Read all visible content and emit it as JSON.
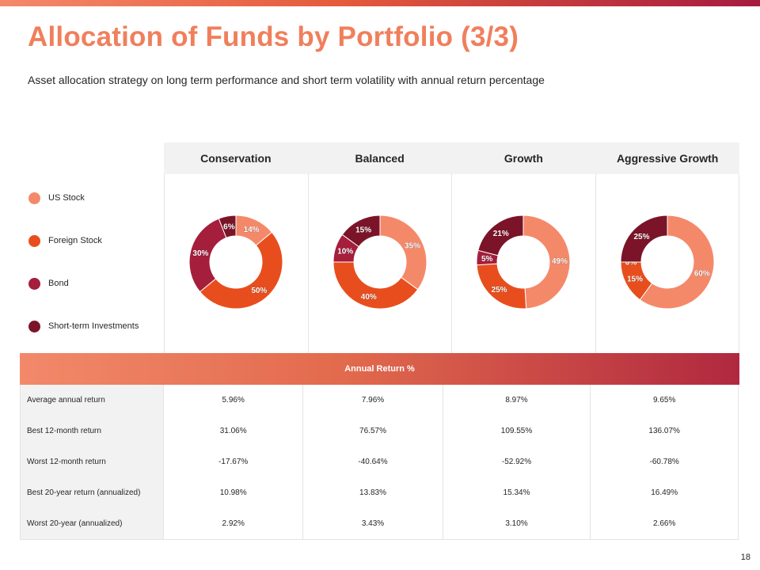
{
  "title": "Allocation of Funds by Portfolio (3/3)",
  "subtitle": "Asset allocation strategy on long term performance and short term volatility  with annual return percentage",
  "page_number": "18",
  "colors": {
    "accent_orange": "#f07f5c",
    "us_stock": "#f4896a",
    "foreign_stock": "#e84e1d",
    "bond": "#a51e3c",
    "short_term": "#7b1428"
  },
  "legend": [
    {
      "label": "US Stock",
      "color": "#f4896a"
    },
    {
      "label": "Foreign Stock",
      "color": "#e84e1d"
    },
    {
      "label": "Bond",
      "color": "#a51e3c"
    },
    {
      "label": "Short-term Investments",
      "color": "#7b1428"
    }
  ],
  "portfolios": [
    "Conservation",
    "Balanced",
    "Growth",
    "Aggressive Growth"
  ],
  "chart_data": [
    {
      "type": "pie",
      "variant": "donut",
      "title": "Conservation",
      "categories": [
        "US Stock",
        "Foreign Stock",
        "Bond",
        "Short-term Investments"
      ],
      "values": [
        14,
        50,
        30,
        6
      ],
      "labels": [
        "14%",
        "50%",
        "30%",
        "6%"
      ]
    },
    {
      "type": "pie",
      "variant": "donut",
      "title": "Balanced",
      "categories": [
        "US Stock",
        "Foreign Stock",
        "Bond",
        "Short-term Investments"
      ],
      "values": [
        35,
        40,
        10,
        15
      ],
      "labels": [
        "35%",
        "40%",
        "10%",
        "15%"
      ]
    },
    {
      "type": "pie",
      "variant": "donut",
      "title": "Growth",
      "categories": [
        "US Stock",
        "Foreign Stock",
        "Bond",
        "Short-term Investments"
      ],
      "values": [
        49,
        25,
        5,
        21
      ],
      "labels": [
        "49%",
        "25%",
        "5%",
        "21%"
      ]
    },
    {
      "type": "pie",
      "variant": "donut",
      "title": "Aggressive Growth",
      "categories": [
        "US Stock",
        "Foreign Stock",
        "Bond",
        "Short-term Investments"
      ],
      "values": [
        60,
        15,
        0,
        25
      ],
      "labels": [
        "60%",
        "15%",
        "0%",
        "25%"
      ]
    }
  ],
  "annual_return": {
    "band_label": "Annual Return %",
    "rows": [
      {
        "metric": "Average annual return",
        "values": [
          "5.96%",
          "7.96%",
          "8.97%",
          "9.65%"
        ]
      },
      {
        "metric": "Best 12-month return",
        "values": [
          "31.06%",
          "76.57%",
          "109.55%",
          "136.07%"
        ]
      },
      {
        "metric": "Worst 12-month return",
        "values": [
          "-17.67%",
          "-40.64%",
          "-52.92%",
          "-60.78%"
        ]
      },
      {
        "metric": "Best 20-year return (annualized)",
        "values": [
          "10.98%",
          "13.83%",
          "15.34%",
          "16.49%"
        ]
      },
      {
        "metric": "Worst 20-year (annualized)",
        "values": [
          "2.92%",
          "3.43%",
          "3.10%",
          "2.66%"
        ]
      }
    ]
  }
}
